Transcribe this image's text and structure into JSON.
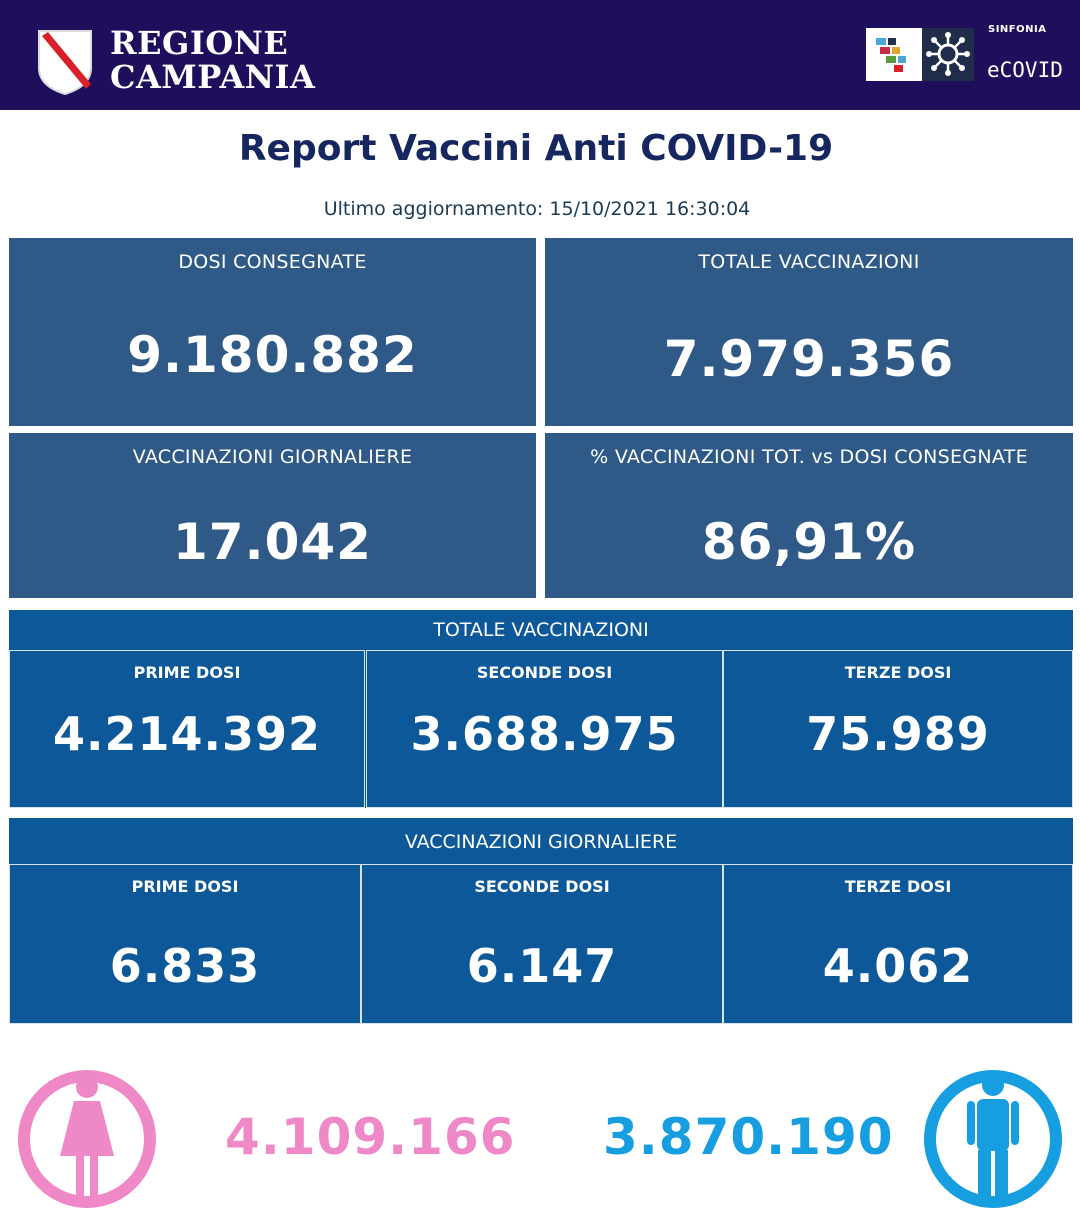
{
  "header": {
    "region_line1": "REGIONE",
    "region_line2": "CAMPANIA",
    "partner_small": "SINFONIA",
    "partner_name": "eCOVID",
    "crest_icon": "campania-crest-icon",
    "logo_icon": "sinfonia-logo-icon",
    "virus_icon": "virus-icon"
  },
  "title": "Report Vaccini Anti COVID-19",
  "last_update": "Ultimo aggiornamento: 15/10/2021  16:30:04",
  "cards": {
    "delivered": {
      "label": "DOSI  CONSEGNATE",
      "value": "9.180.882"
    },
    "total": {
      "label": "TOTALE VACCINAZIONI",
      "value": "7.979.356"
    },
    "daily": {
      "label": "VACCINAZIONI GIORNALIERE",
      "value": "17.042"
    },
    "percent": {
      "label": "% VACCINAZIONI TOT. vs DOSI CONSEGNATE",
      "value": "86,91%"
    }
  },
  "total_section": {
    "title": "TOTALE VACCINAZIONI",
    "cells": [
      {
        "label": "PRIME DOSI",
        "value": "4.214.392"
      },
      {
        "label": "SECONDE DOSI",
        "value": "3.688.975"
      },
      {
        "label": "TERZE DOSI",
        "value": "75.989"
      }
    ]
  },
  "daily_section": {
    "title": "VACCINAZIONI GIORNALIERE",
    "cells": [
      {
        "label": "PRIME DOSI",
        "value": "6.833"
      },
      {
        "label": "SECONDE DOSI",
        "value": "6.147"
      },
      {
        "label": "TERZE DOSI",
        "value": "4.062"
      }
    ]
  },
  "gender": {
    "female_value": "4.109.166",
    "male_value": "3.870.190",
    "female_icon": "female-icon",
    "male_icon": "male-icon"
  },
  "colors": {
    "header_bg": "#1e0e5c",
    "card_bg": "#2f5a87",
    "section_bg": "#0c5898",
    "title": "#16265e",
    "female": "#ef88c6",
    "male": "#169ee0"
  }
}
